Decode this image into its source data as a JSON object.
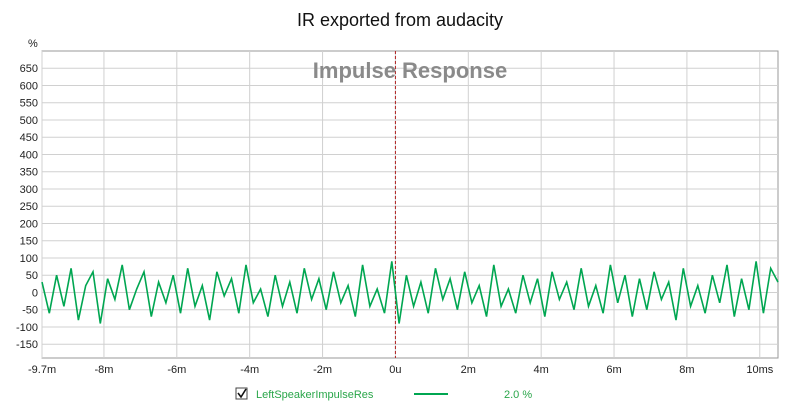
{
  "chart_data": {
    "type": "line",
    "title": "IR exported from audacity",
    "subtitle": "Impulse Response",
    "ylabel_unit": "%",
    "xlabel": "",
    "xlim_ms": [
      -9.7,
      10.5
    ],
    "ylim": [
      -190,
      700
    ],
    "y_ticks": [
      650,
      600,
      550,
      500,
      450,
      400,
      350,
      300,
      250,
      200,
      150,
      100,
      50,
      0,
      -50,
      -100,
      -150
    ],
    "x_ticks": [
      {
        "value": -9.7,
        "label": "-9.7m"
      },
      {
        "value": -8,
        "label": "-8m"
      },
      {
        "value": -6,
        "label": "-6m"
      },
      {
        "value": -4,
        "label": "-4m"
      },
      {
        "value": -2,
        "label": "-2m"
      },
      {
        "value": 0,
        "label": "0u"
      },
      {
        "value": 2,
        "label": "2m"
      },
      {
        "value": 4,
        "label": "4m"
      },
      {
        "value": 6,
        "label": "6m"
      },
      {
        "value": 8,
        "label": "8m"
      },
      {
        "value": 10,
        "label": "10ms"
      }
    ],
    "grid": true,
    "marker_x": 0,
    "series": [
      {
        "name": "LeftSpeakerImpulseRes",
        "color": "#00a651",
        "scale_label": "2.0 %",
        "x": [
          -9.7,
          -9.5,
          -9.3,
          -9.1,
          -8.9,
          -8.7,
          -8.5,
          -8.3,
          -8.1,
          -7.9,
          -7.7,
          -7.5,
          -7.3,
          -7.1,
          -6.9,
          -6.7,
          -6.5,
          -6.3,
          -6.1,
          -5.9,
          -5.7,
          -5.5,
          -5.3,
          -5.1,
          -4.9,
          -4.7,
          -4.5,
          -4.3,
          -4.1,
          -3.9,
          -3.7,
          -3.5,
          -3.3,
          -3.1,
          -2.9,
          -2.7,
          -2.5,
          -2.3,
          -2.1,
          -1.9,
          -1.7,
          -1.5,
          -1.3,
          -1.1,
          -0.9,
          -0.7,
          -0.5,
          -0.3,
          -0.1,
          0.1,
          0.3,
          0.5,
          0.7,
          0.9,
          1.1,
          1.3,
          1.5,
          1.7,
          1.9,
          2.1,
          2.3,
          2.5,
          2.7,
          2.9,
          3.1,
          3.3,
          3.5,
          3.7,
          3.9,
          4.1,
          4.3,
          4.5,
          4.7,
          4.9,
          5.1,
          5.3,
          5.5,
          5.7,
          5.9,
          6.1,
          6.3,
          6.5,
          6.7,
          6.9,
          7.1,
          7.3,
          7.5,
          7.7,
          7.9,
          8.1,
          8.3,
          8.5,
          8.7,
          8.9,
          9.1,
          9.3,
          9.5,
          9.7,
          9.9,
          10.1,
          10.3,
          10.5
        ],
        "values": [
          30,
          -60,
          50,
          -40,
          70,
          -80,
          20,
          60,
          -90,
          40,
          -20,
          80,
          -50,
          10,
          60,
          -70,
          30,
          -30,
          50,
          -60,
          70,
          -40,
          20,
          -80,
          60,
          -10,
          40,
          -60,
          80,
          -30,
          10,
          -70,
          50,
          -40,
          30,
          -60,
          70,
          -20,
          40,
          -50,
          60,
          -30,
          20,
          -70,
          80,
          -40,
          10,
          -60,
          90,
          -90,
          50,
          -40,
          30,
          -60,
          70,
          -20,
          40,
          -50,
          60,
          -30,
          20,
          -70,
          80,
          -40,
          10,
          -60,
          50,
          -30,
          40,
          -70,
          60,
          -20,
          30,
          -50,
          70,
          -40,
          20,
          -60,
          80,
          -30,
          50,
          -70,
          40,
          -50,
          60,
          -20,
          30,
          -80,
          70,
          -40,
          20,
          -60,
          50,
          -30,
          80,
          -70,
          40,
          -50,
          90,
          -60,
          70,
          30
        ]
      }
    ]
  },
  "legend": {
    "checkbox_checked": true,
    "series_label": "LeftSpeakerImpulseRes",
    "scale_label": "2.0 %"
  }
}
